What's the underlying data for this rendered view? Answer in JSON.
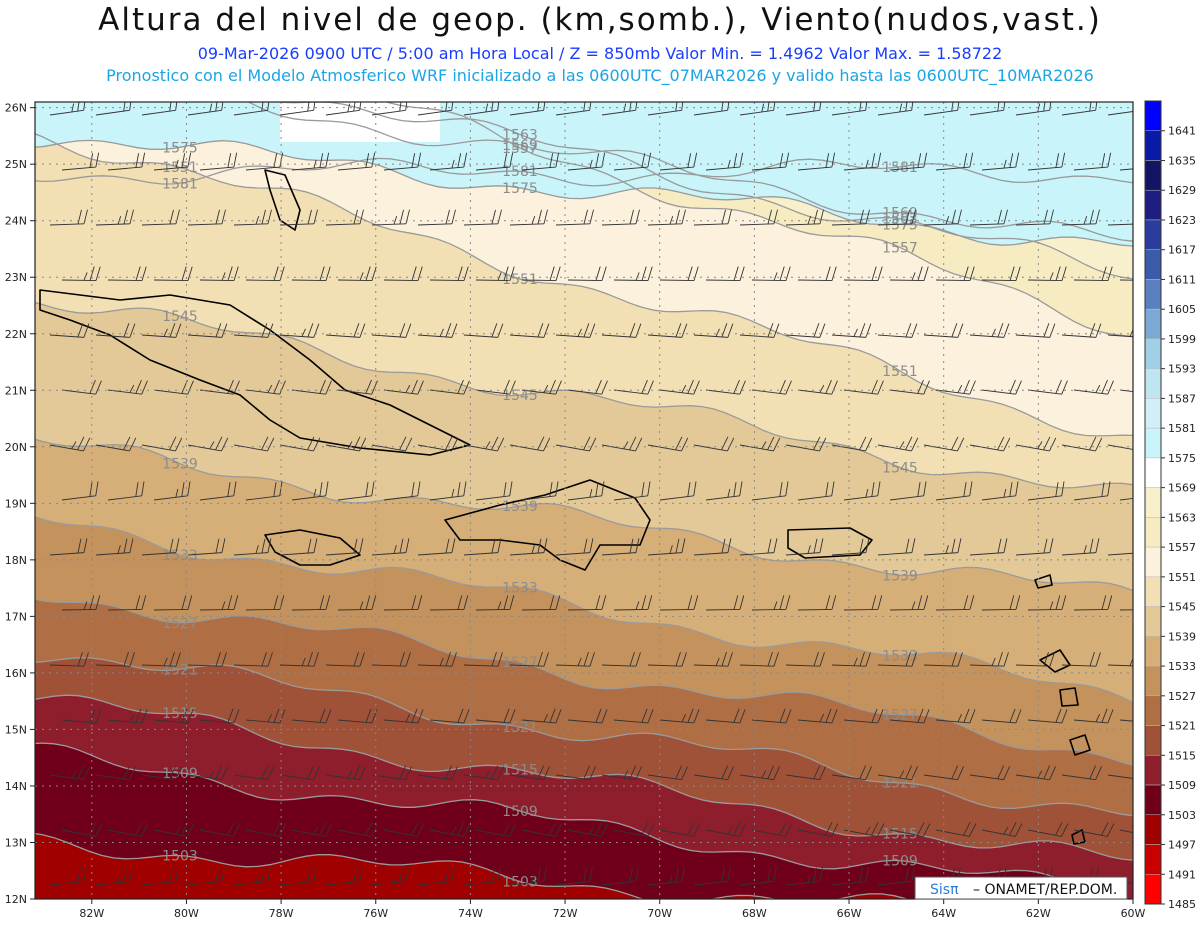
{
  "header": {
    "title": "Altura del nivel de geop. (km,somb.), Viento(nudos,vast.)",
    "subtitle": "09-Mar-2026  0900 UTC / 5:00 am Hora Local / Z = 850mb      Valor Min. = 1.4962  Valor Max. = 1.58722",
    "info": "Pronostico con el Modelo Atmosferico WRF inicializado a las 0600UTC_07MAR2026 y valido hasta las  0600UTC_10MAR2026"
  },
  "axes": {
    "lat_labels": [
      "26N",
      "25N",
      "24N",
      "23N",
      "22N",
      "21N",
      "20N",
      "19N",
      "18N",
      "17N",
      "16N",
      "15N",
      "14N",
      "13N",
      "12N"
    ],
    "lon_labels": [
      "82W",
      "80W",
      "78W",
      "76W",
      "74W",
      "72W",
      "70W",
      "68W",
      "66W",
      "64W",
      "62W",
      "60W"
    ]
  },
  "colorbar": {
    "labels": [
      "1641",
      "1635",
      "1629",
      "1623",
      "1617",
      "1611",
      "1605",
      "1599",
      "1593",
      "1587",
      "1581",
      "1575",
      "1569",
      "1563",
      "1557",
      "1551",
      "1545",
      "1539",
      "1533",
      "1527",
      "1521",
      "1515",
      "1509",
      "1503",
      "1497",
      "1491",
      "1485"
    ],
    "colors": [
      "#0000ff",
      "#0a1aa8",
      "#141464",
      "#1e1e82",
      "#2a3c9c",
      "#3c5aaa",
      "#5a80c0",
      "#7ca8d4",
      "#a0cfe6",
      "#bfe6f0",
      "#d2eef6",
      "#c8f4fa",
      "#ffffff",
      "#f8f0cc",
      "#f7ebc2",
      "#fcf1dc",
      "#f2e0b4",
      "#e4c998",
      "#d6ae78",
      "#c4925c",
      "#b06e44",
      "#a05238",
      "#8e1e2c",
      "#70001a",
      "#a00000",
      "#c80000",
      "#ff0000"
    ]
  },
  "contours": [
    {
      "label": "1581",
      "level": 1581
    },
    {
      "label": "1575",
      "level": 1575
    },
    {
      "label": "1569",
      "level": 1569
    },
    {
      "label": "1563",
      "level": 1563
    },
    {
      "label": "1557",
      "level": 1557
    },
    {
      "label": "1551",
      "level": 1551
    },
    {
      "label": "1545",
      "level": 1545
    },
    {
      "label": "1539",
      "level": 1539
    },
    {
      "label": "1533",
      "level": 1533
    },
    {
      "label": "1527",
      "level": 1527
    },
    {
      "label": "1521",
      "level": 1521
    },
    {
      "label": "1515",
      "level": 1515
    },
    {
      "label": "1509",
      "level": 1509
    },
    {
      "label": "1503",
      "level": 1503
    }
  ],
  "credit": {
    "brand": "Sisπ",
    "text": "– ONAMET/REP.DOM."
  },
  "colors": {
    "title": "#111111",
    "subtitle": "#1a3cff",
    "info": "#19a5e6",
    "contour": "#9a9a9a"
  }
}
